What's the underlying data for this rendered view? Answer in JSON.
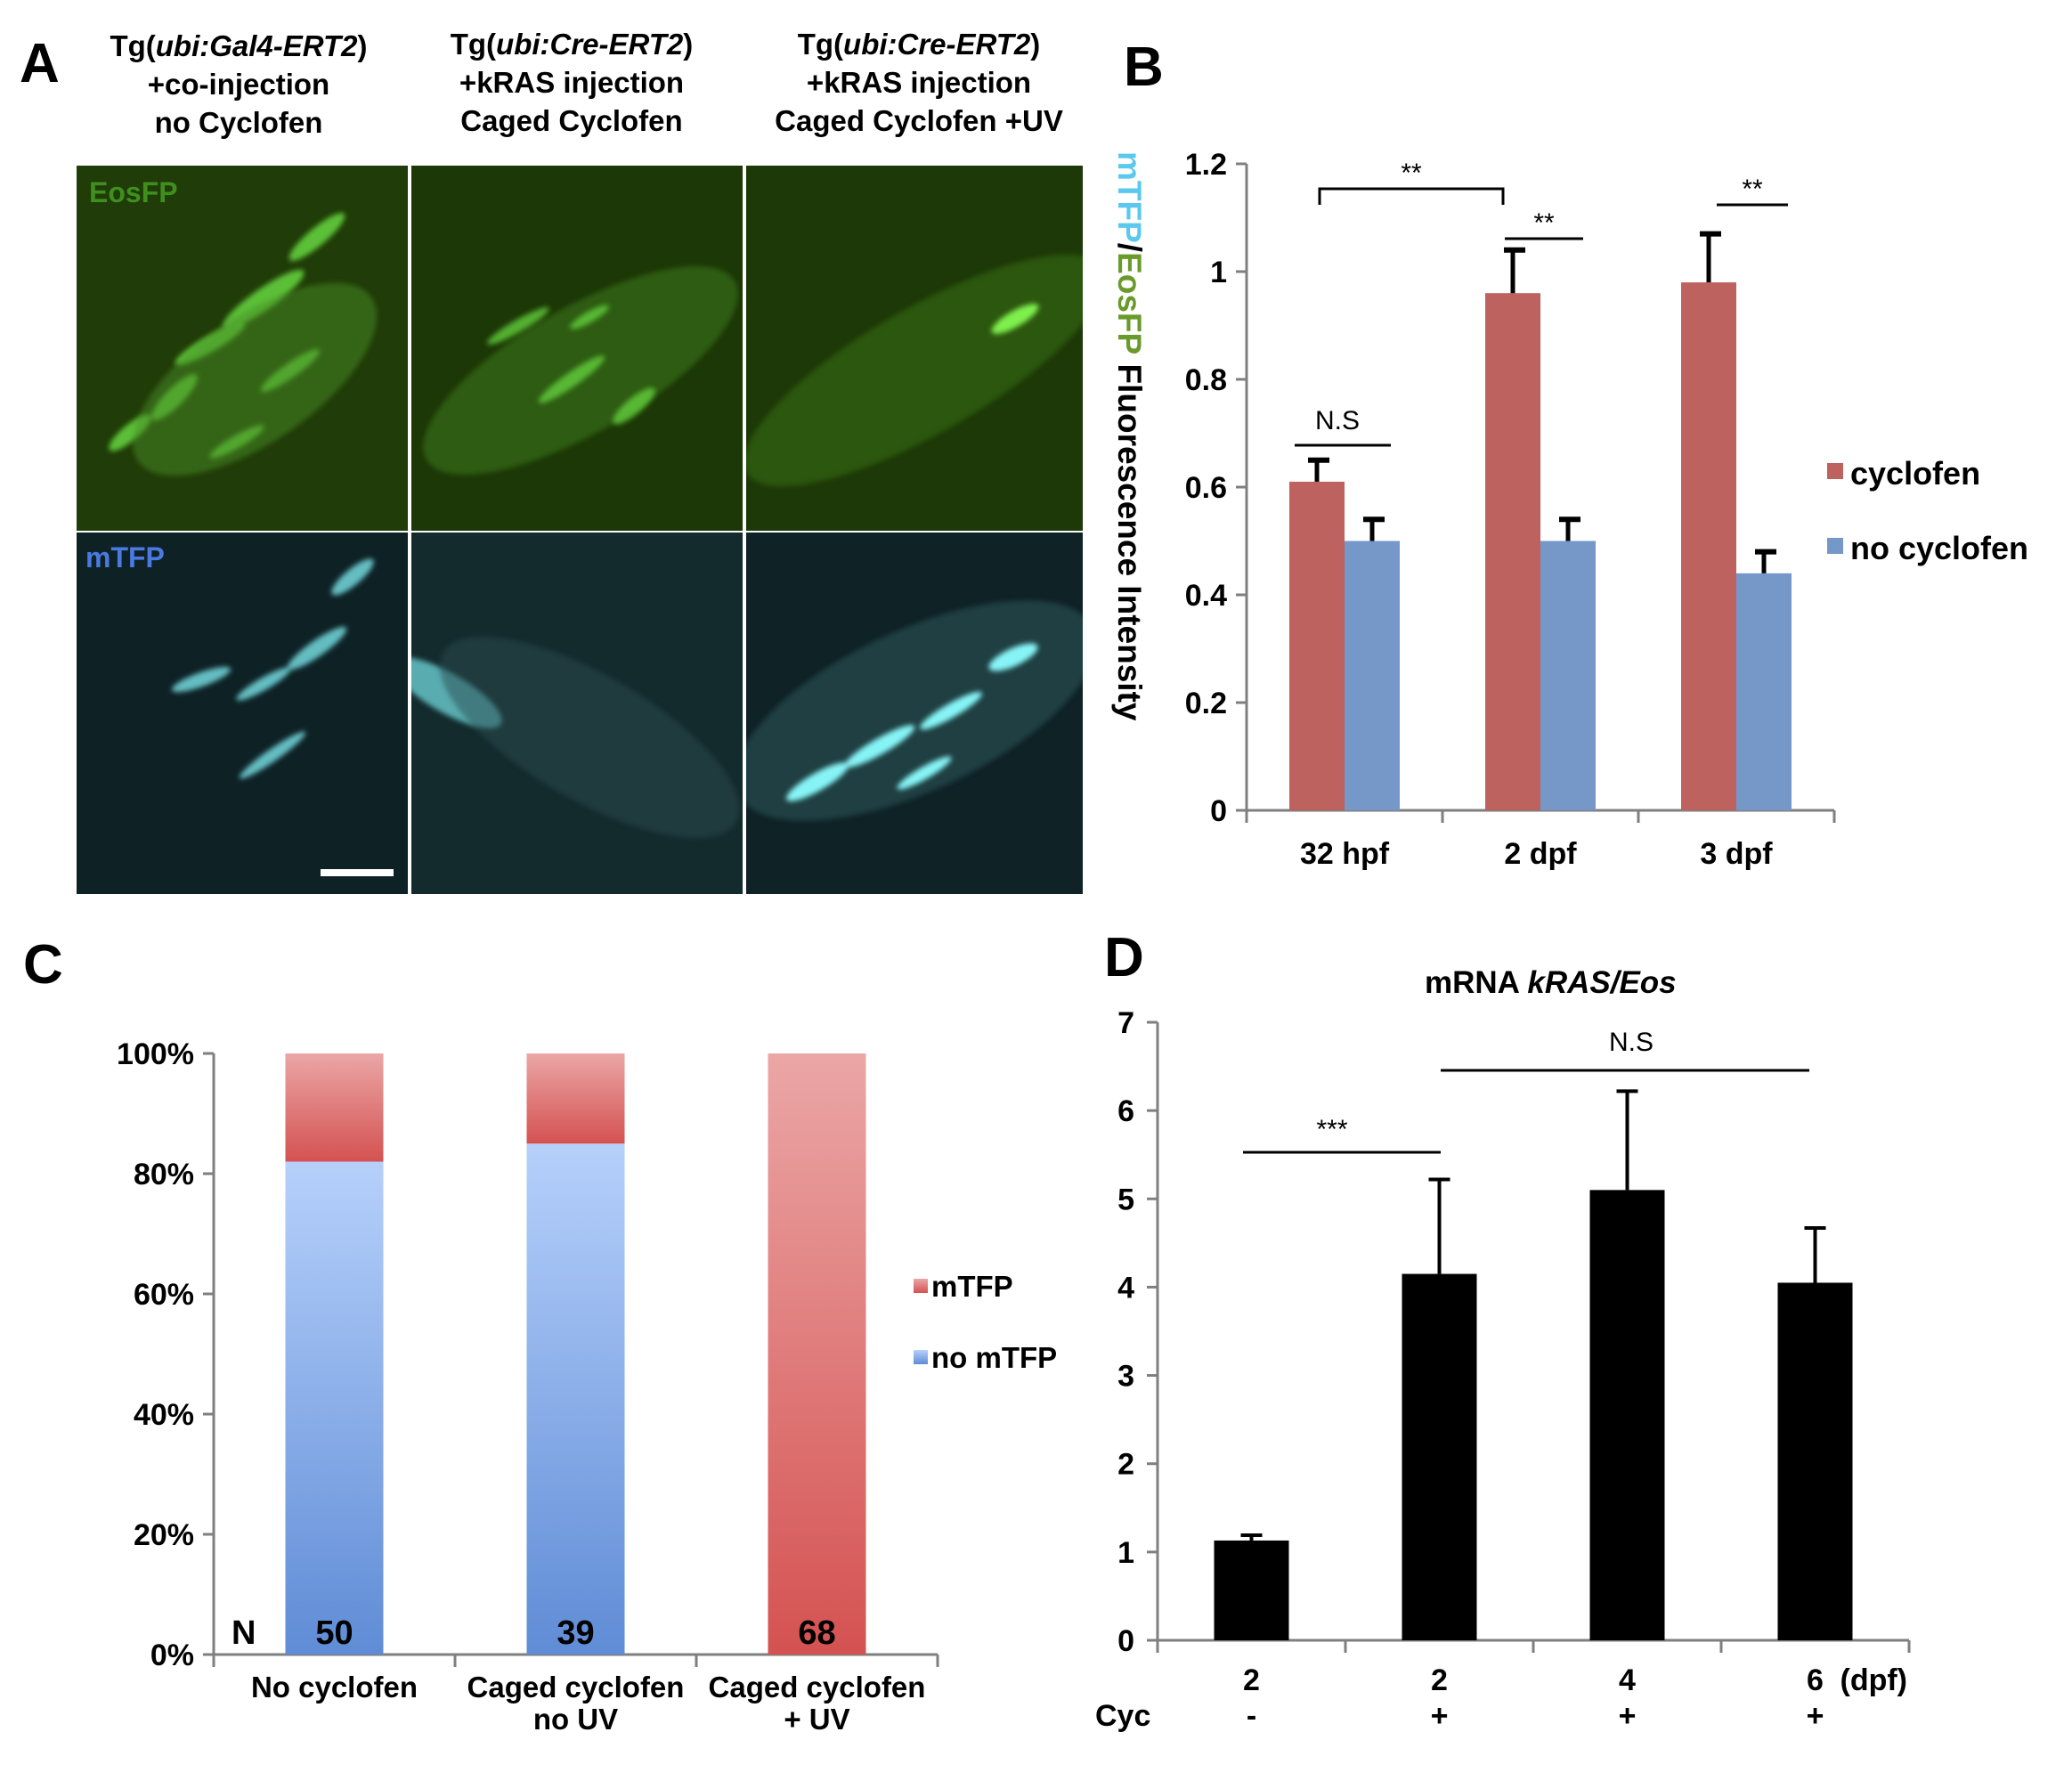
{
  "panelA": {
    "letter": "A",
    "columns": [
      {
        "line1_pre": "Tg(",
        "line1_italic": "ubi:Gal4-ERT2",
        "line1_post": ")",
        "line2": "+co-injection",
        "line3": "no Cyclofen"
      },
      {
        "line1_pre": "Tg(",
        "line1_italic": "ubi:Cre-ERT2",
        "line1_post": ")",
        "line2": "+kRAS injection",
        "line3": "Caged Cyclofen"
      },
      {
        "line1_pre": "Tg(",
        "line1_italic": "ubi:Cre-ERT2",
        "line1_post": ")",
        "line2": "+kRAS injection",
        "line3": "Caged Cyclofen +UV"
      }
    ],
    "row_labels": {
      "top": "EosFP",
      "bottom": "mTFP"
    },
    "colors": {
      "eos_bg": "#1e3a06",
      "eos_cell": "#6ee646",
      "mtfp_bg": "#10262a",
      "mtfp_cell": "#7ff0f2"
    }
  },
  "panelB": {
    "letter": "B",
    "ylabel_parts": [
      {
        "text": "mTFP",
        "color": "#5bc8ee"
      },
      {
        "text": "/",
        "color": "#000000"
      },
      {
        "text": "EosFP",
        "color": "#6a9a2a"
      },
      {
        "text": " Fluorescence Intensity",
        "color": "#000000"
      }
    ],
    "significance": [
      {
        "text": "**"
      },
      {
        "text": "**"
      },
      {
        "text": "**"
      },
      {
        "text": "N.S"
      }
    ]
  },
  "panelC": {
    "letter": "C",
    "n_label": "N",
    "legend": [
      {
        "name": "mTFP",
        "color": "#d9595a"
      },
      {
        "name": "no mTFP",
        "color": "#7aa2e0"
      }
    ]
  },
  "panelD": {
    "letter": "D",
    "title_pre": "mRNA ",
    "title_italic": "kRAS/Eos",
    "row_label": "Cyc",
    "unit": "(dpf)",
    "cyc_values": [
      "-",
      "+",
      "+",
      "+"
    ],
    "significance": [
      {
        "text": "***"
      },
      {
        "text": "N.S"
      }
    ]
  },
  "chart_data": [
    {
      "type": "bar",
      "panel": "B",
      "categories": [
        "32 hpf",
        "2 dpf",
        "3 dpf"
      ],
      "series": [
        {
          "name": "cyclofen",
          "color": "#bd625f",
          "values": [
            0.61,
            0.96,
            0.98
          ],
          "errors": [
            0.04,
            0.08,
            0.09
          ]
        },
        {
          "name": "no cyclofen",
          "color": "#7598c9",
          "values": [
            0.5,
            0.5,
            0.44
          ],
          "errors": [
            0.04,
            0.04,
            0.04
          ]
        }
      ],
      "ylim": [
        0,
        1.2
      ],
      "yticks": [
        "0",
        "0.2",
        "0.4",
        "0.6",
        "0.8",
        "1",
        "1.2"
      ],
      "legend_position": "right",
      "grid": false
    },
    {
      "type": "bar",
      "panel": "C",
      "stacked": true,
      "categories": [
        "No cyclofen",
        "Caged cyclofen\nno UV",
        "Caged cyclofen\n+ UV"
      ],
      "series": [
        {
          "name": "no mTFP",
          "values": [
            82,
            85,
            0
          ]
        },
        {
          "name": "mTFP",
          "values": [
            18,
            15,
            100
          ]
        }
      ],
      "n_values": [
        "50",
        "39",
        "68"
      ],
      "ylim": [
        0,
        100
      ],
      "yticks": [
        "0%",
        "20%",
        "40%",
        "60%",
        "80%",
        "100%"
      ],
      "legend_position": "right",
      "grid": false
    },
    {
      "type": "bar",
      "panel": "D",
      "categories": [
        "2",
        "2",
        "4",
        "6"
      ],
      "values": [
        1.13,
        4.15,
        5.1,
        4.05
      ],
      "errors": [
        0.06,
        1.07,
        1.12,
        0.62
      ],
      "ylim": [
        0,
        7
      ],
      "yticks": [
        "0",
        "1",
        "2",
        "3",
        "4",
        "5",
        "6",
        "7"
      ],
      "color": "#000000",
      "grid": false
    }
  ]
}
